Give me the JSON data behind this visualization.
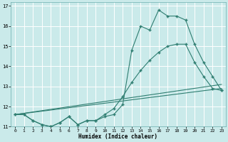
{
  "xlabel": "Humidex (Indice chaleur)",
  "background_color": "#caeaea",
  "grid_color": "#b0d8d8",
  "line_color": "#2e7d70",
  "xlim": [
    -0.5,
    23.5
  ],
  "ylim": [
    11,
    17.2
  ],
  "yticks": [
    11,
    12,
    13,
    14,
    15,
    16,
    17
  ],
  "xticks": [
    0,
    1,
    2,
    3,
    4,
    5,
    6,
    7,
    8,
    9,
    10,
    11,
    12,
    13,
    14,
    15,
    16,
    17,
    18,
    19,
    20,
    21,
    22,
    23
  ],
  "series1_x": [
    0,
    1,
    2,
    3,
    4,
    5,
    6,
    7,
    8,
    9,
    10,
    11,
    12,
    13,
    14,
    15,
    16,
    17,
    18,
    19,
    20,
    21,
    22,
    23
  ],
  "series1_y": [
    11.6,
    11.6,
    11.3,
    11.1,
    11.0,
    11.2,
    11.5,
    11.1,
    11.3,
    11.3,
    11.5,
    11.6,
    12.1,
    14.8,
    16.0,
    15.8,
    16.8,
    16.5,
    16.5,
    16.3,
    15.1,
    14.2,
    13.5,
    12.8
  ],
  "series2_x": [
    0,
    1,
    2,
    3,
    4,
    5,
    6,
    7,
    8,
    9,
    10,
    11,
    12,
    13,
    14,
    15,
    16,
    17,
    18,
    19,
    20,
    21,
    22,
    23
  ],
  "series2_y": [
    11.6,
    11.6,
    11.3,
    11.1,
    11.0,
    11.2,
    11.5,
    11.1,
    11.3,
    11.3,
    11.6,
    11.9,
    12.5,
    13.2,
    13.8,
    14.3,
    14.7,
    15.0,
    15.1,
    15.1,
    14.2,
    13.5,
    12.9,
    12.8
  ],
  "series3_x": [
    0,
    23
  ],
  "series3_y": [
    11.6,
    12.9
  ],
  "series4_x": [
    0,
    23
  ],
  "series4_y": [
    11.6,
    13.1
  ]
}
